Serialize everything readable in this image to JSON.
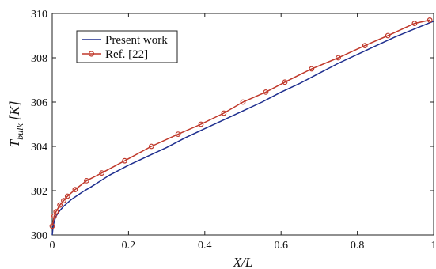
{
  "chart_data": {
    "type": "line",
    "xlabel": "X/L",
    "ylabel_main": "T",
    "ylabel_sub": "bulk",
    "ylabel_unit": "[K]",
    "xlim": [
      0,
      1
    ],
    "ylim": [
      300,
      310
    ],
    "xticks": [
      0,
      0.2,
      0.4,
      0.6,
      0.8,
      1
    ],
    "xtick_labels": [
      "0",
      "0.2",
      "0.4",
      "0.6",
      "0.8",
      "1"
    ],
    "yticks": [
      300,
      302,
      304,
      306,
      308,
      310
    ],
    "ytick_labels": [
      "300",
      "302",
      "304",
      "306",
      "308",
      "310"
    ],
    "grid": false,
    "legend_position": "top-left",
    "series": [
      {
        "name": "Present work",
        "color": "#1f2f8f",
        "marker": "none",
        "x": [
          0,
          0.002,
          0.005,
          0.01,
          0.02,
          0.03,
          0.05,
          0.08,
          0.1,
          0.15,
          0.2,
          0.25,
          0.3,
          0.35,
          0.4,
          0.45,
          0.5,
          0.55,
          0.6,
          0.65,
          0.7,
          0.75,
          0.8,
          0.85,
          0.9,
          0.95,
          1.0
        ],
        "y": [
          300.0,
          300.35,
          300.6,
          300.85,
          301.1,
          301.3,
          301.6,
          301.95,
          302.15,
          302.7,
          303.15,
          303.55,
          303.95,
          304.4,
          304.8,
          305.2,
          305.6,
          306.0,
          306.45,
          306.85,
          307.3,
          307.75,
          308.15,
          308.55,
          308.95,
          309.3,
          309.65
        ]
      },
      {
        "name": "Ref. [22]",
        "color": "#c0392b",
        "marker": "circle",
        "x": [
          0,
          0.005,
          0.01,
          0.02,
          0.03,
          0.04,
          0.06,
          0.09,
          0.13,
          0.19,
          0.26,
          0.33,
          0.39,
          0.45,
          0.5,
          0.56,
          0.61,
          0.68,
          0.75,
          0.82,
          0.88,
          0.95,
          0.99
        ],
        "y": [
          300.4,
          300.85,
          301.05,
          301.35,
          301.55,
          301.75,
          302.05,
          302.45,
          302.8,
          303.35,
          304.0,
          304.55,
          305.0,
          305.5,
          306.0,
          306.45,
          306.9,
          307.5,
          308.0,
          308.55,
          309.0,
          309.55,
          309.7
        ]
      }
    ]
  }
}
